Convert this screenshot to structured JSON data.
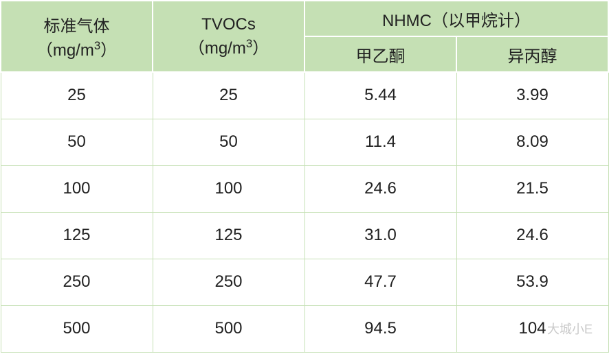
{
  "table": {
    "header_bg": "#c5e0b4",
    "header_border": "#ffffff",
    "data_border": "#c5e0b4",
    "header_text_color": "#222222",
    "data_text_color": "#222222",
    "header_fontsize": 24,
    "data_fontsize": 24,
    "row_height_header1": 52,
    "row_height_header2": 52,
    "row_height_data": 68,
    "col1_label_line1": "标准气体",
    "col1_label_line2_prefix": "（mg/m",
    "col1_label_line2_suffix": "）",
    "col2_label_line1": "TVOCs",
    "col2_label_line2_prefix": "（mg/m",
    "col2_label_line2_suffix": "）",
    "group_label": "NHMC（以甲烷计）",
    "sub1_label": "甲乙酮",
    "sub2_label": "异丙醇",
    "sup_text": "3",
    "rows": [
      {
        "c1": "25",
        "c2": "25",
        "c3": "5.44",
        "c4": "3.99"
      },
      {
        "c1": "50",
        "c2": "50",
        "c3": "11.4",
        "c4": "8.09"
      },
      {
        "c1": "100",
        "c2": "100",
        "c3": "24.6",
        "c4": "21.5"
      },
      {
        "c1": "125",
        "c2": "125",
        "c3": "31.0",
        "c4": "24.6"
      },
      {
        "c1": "250",
        "c2": "250",
        "c3": "47.7",
        "c4": "53.9"
      },
      {
        "c1": "500",
        "c2": "500",
        "c3": "94.5",
        "c4": "104"
      }
    ]
  },
  "watermark_text": "大城小E"
}
